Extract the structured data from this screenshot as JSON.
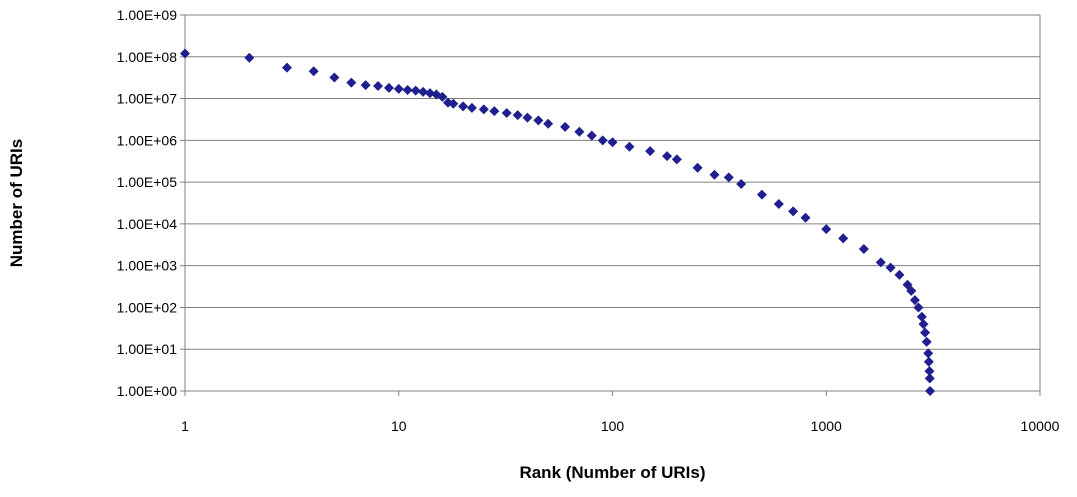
{
  "chart_data": {
    "type": "scatter",
    "title": "",
    "xlabel": "Rank (Number of URIs)",
    "ylabel": "Number of URIs",
    "x_scale": "log",
    "y_scale": "log",
    "xlim": [
      1,
      10000
    ],
    "ylim": [
      1,
      1000000000
    ],
    "x_ticks": [
      1,
      10,
      100,
      1000,
      10000
    ],
    "x_tick_labels": [
      "1",
      "10",
      "100",
      "1000",
      "10000"
    ],
    "y_ticks": [
      1,
      10,
      100,
      1000,
      10000,
      100000,
      1000000,
      10000000,
      100000000,
      1000000000
    ],
    "y_tick_labels": [
      "1.00E+00",
      "1.00E+01",
      "1.00E+02",
      "1.00E+03",
      "1.00E+04",
      "1.00E+05",
      "1.00E+06",
      "1.00E+07",
      "1.00E+08",
      "1.00E+09"
    ],
    "grid": "horizontal major gridlines",
    "legend": "none",
    "marker": "diamond",
    "marker_color": "#1f1f8f",
    "series": [
      {
        "points": [
          [
            1,
            120000000
          ],
          [
            2,
            95000000
          ],
          [
            3,
            55000000
          ],
          [
            4,
            45000000
          ],
          [
            5,
            32000000
          ],
          [
            6,
            24000000
          ],
          [
            7,
            21000000
          ],
          [
            8,
            20000000
          ],
          [
            9,
            18000000
          ],
          [
            10,
            17000000
          ],
          [
            11,
            16000000
          ],
          [
            12,
            15500000
          ],
          [
            13,
            14500000
          ],
          [
            14,
            13500000
          ],
          [
            15,
            12500000
          ],
          [
            16,
            11000000
          ],
          [
            17,
            8000000
          ],
          [
            18,
            7500000
          ],
          [
            20,
            6500000
          ],
          [
            22,
            6000000
          ],
          [
            25,
            5500000
          ],
          [
            28,
            5000000
          ],
          [
            32,
            4500000
          ],
          [
            36,
            4000000
          ],
          [
            40,
            3500000
          ],
          [
            45,
            3000000
          ],
          [
            50,
            2500000
          ],
          [
            60,
            2100000
          ],
          [
            70,
            1600000
          ],
          [
            80,
            1300000
          ],
          [
            90,
            1000000
          ],
          [
            100,
            900000
          ],
          [
            120,
            700000
          ],
          [
            150,
            550000
          ],
          [
            180,
            420000
          ],
          [
            200,
            350000
          ],
          [
            250,
            220000
          ],
          [
            300,
            150000
          ],
          [
            350,
            130000
          ],
          [
            400,
            90000
          ],
          [
            500,
            50000
          ],
          [
            600,
            30000
          ],
          [
            700,
            20000
          ],
          [
            800,
            14000
          ],
          [
            1000,
            7500
          ],
          [
            1200,
            4500
          ],
          [
            1500,
            2500
          ],
          [
            1800,
            1200
          ],
          [
            2000,
            900
          ],
          [
            2200,
            600
          ],
          [
            2400,
            350
          ],
          [
            2500,
            250
          ],
          [
            2600,
            150
          ],
          [
            2700,
            100
          ],
          [
            2800,
            60
          ],
          [
            2850,
            40
          ],
          [
            2900,
            25
          ],
          [
            2950,
            15
          ],
          [
            3000,
            8
          ],
          [
            3020,
            5
          ],
          [
            3040,
            3
          ],
          [
            3050,
            2
          ],
          [
            3060,
            1
          ]
        ]
      }
    ]
  }
}
